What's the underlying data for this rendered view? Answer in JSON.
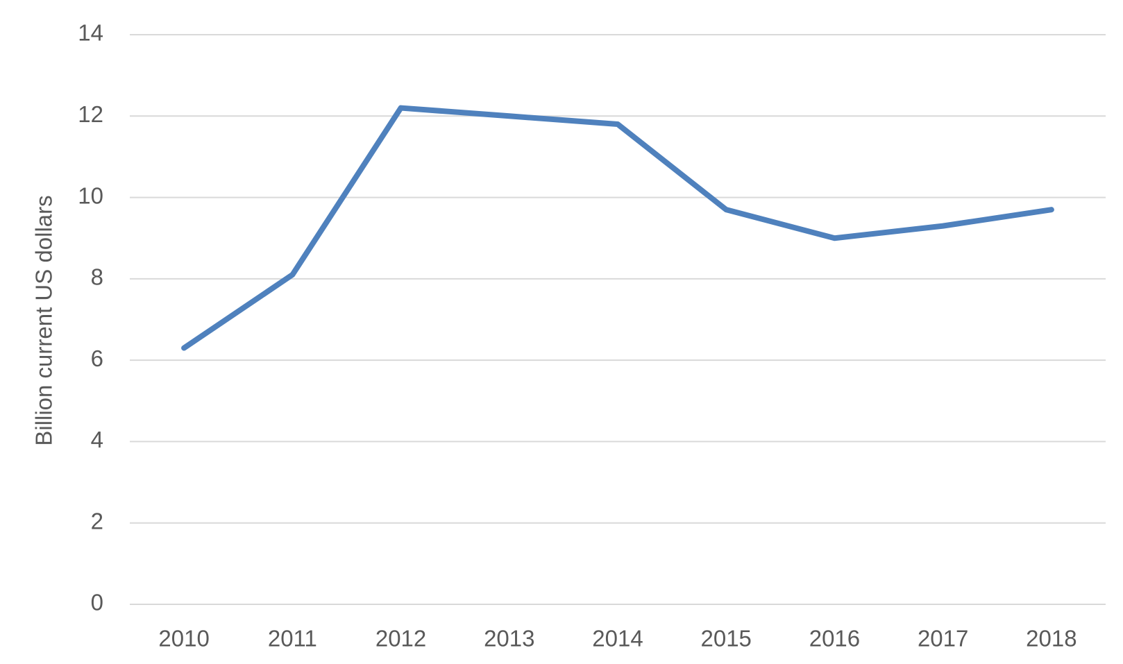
{
  "chart_data": {
    "type": "line",
    "y_label": "Billion current US dollars",
    "categories": [
      "2010",
      "2011",
      "2012",
      "2013",
      "2014",
      "2015",
      "2016",
      "2017",
      "2018"
    ],
    "values": [
      6.3,
      8.1,
      12.2,
      12.0,
      11.8,
      9.7,
      9.0,
      9.3,
      9.7
    ],
    "color": "#4f81bd",
    "ylim": [
      0,
      14
    ],
    "yticks": [
      0,
      2,
      4,
      6,
      8,
      10,
      12,
      14
    ],
    "grid": true
  }
}
